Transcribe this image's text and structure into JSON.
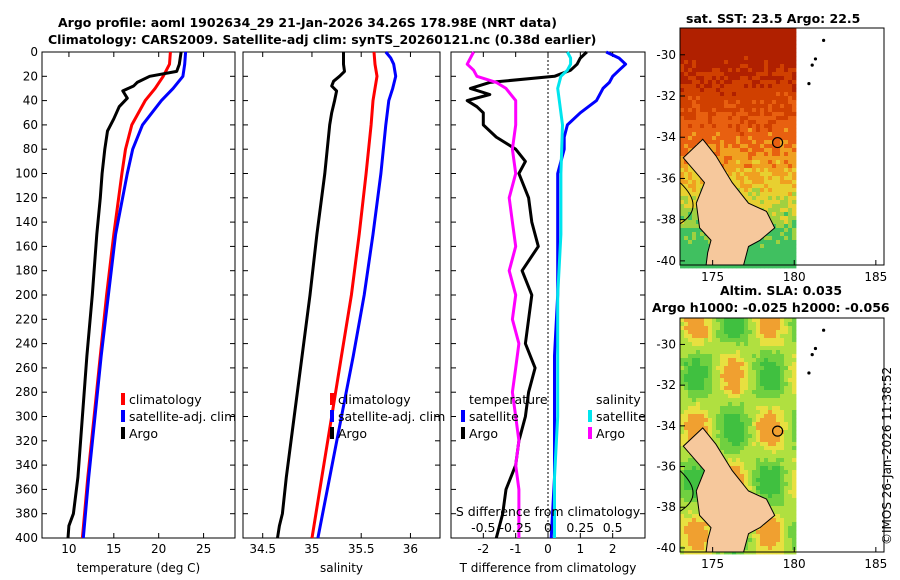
{
  "header": {
    "title_line1": "Argo profile: aoml 1902634_29 21-Jan-2026 34.26S 178.98E (NRT data)",
    "title_line2": "Climatology: CARS2009. Satellite-adj clim: synTS_20260121.nc (0.38d earlier)"
  },
  "map_sst": {
    "title": "sat. SST: 23.5 Argo: 22.5"
  },
  "map_sla": {
    "title_line1": "Altim. SLA: 0.035",
    "title_line2": "Argo h1000: -0.025 h2000: -0.056"
  },
  "watermark": "©IMOS 26-Jan-2026 11:38:52",
  "colors": {
    "climatology": "#ff0000",
    "satellite": "#0000ff",
    "argo": "#000000",
    "sat_diff": "#00e5ee",
    "argo_diff": "#ff00ff"
  },
  "chart_data": [
    {
      "type": "line",
      "name": "temperature",
      "xlabel": "temperature (deg C)",
      "xlim": [
        7,
        28.5
      ],
      "ylim": [
        0,
        400
      ],
      "xticks": [
        "10",
        "15",
        "20",
        "25"
      ],
      "xtick_values": [
        10,
        15,
        20,
        25
      ],
      "yticks": [
        "0",
        "20",
        "40",
        "60",
        "80",
        "100",
        "120",
        "140",
        "160",
        "180",
        "200",
        "220",
        "240",
        "260",
        "280",
        "300",
        "320",
        "340",
        "360",
        "380",
        "400"
      ],
      "ytick_values": [
        0,
        20,
        40,
        60,
        80,
        100,
        120,
        140,
        160,
        180,
        200,
        220,
        240,
        260,
        280,
        300,
        320,
        340,
        360,
        380,
        400
      ],
      "legend": [
        "climatology",
        "satellite-adj. clim",
        "Argo"
      ],
      "series": [
        {
          "name": "climatology",
          "color": "#ff0000",
          "depth": [
            0,
            10,
            20,
            30,
            40,
            60,
            80,
            100,
            150,
            200,
            250,
            300,
            350,
            400
          ],
          "values": [
            21.3,
            21.2,
            20.5,
            19.6,
            18.5,
            17.0,
            16.3,
            15.9,
            15.0,
            14.2,
            13.5,
            12.8,
            12.1,
            11.5
          ]
        },
        {
          "name": "satellite-adj. clim",
          "color": "#0000ff",
          "depth": [
            0,
            10,
            20,
            30,
            40,
            60,
            80,
            100,
            150,
            200,
            250,
            300,
            350,
            400
          ],
          "values": [
            23.0,
            22.9,
            22.7,
            21.6,
            20.3,
            18.2,
            17.1,
            16.5,
            15.2,
            14.4,
            13.6,
            12.9,
            12.2,
            11.6
          ]
        },
        {
          "name": "Argo",
          "color": "#000000",
          "depth": [
            0,
            5,
            10,
            16,
            20,
            25,
            28,
            32,
            38,
            45,
            55,
            65,
            80,
            100,
            120,
            150,
            200,
            250,
            300,
            350,
            380,
            390,
            400
          ],
          "values": [
            22.5,
            22.4,
            22.3,
            22.0,
            19.0,
            17.6,
            17.2,
            16.0,
            16.5,
            15.6,
            15.0,
            14.3,
            14.0,
            13.7,
            13.5,
            13.1,
            12.6,
            12.0,
            11.5,
            11.0,
            10.5,
            10.0,
            9.9
          ]
        }
      ]
    },
    {
      "type": "line",
      "name": "salinity",
      "xlabel": "salinity",
      "xlim": [
        34.3,
        36.3
      ],
      "ylim": [
        0,
        400
      ],
      "xticks": [
        "34.5",
        "35",
        "35.5",
        "36"
      ],
      "xtick_values": [
        34.5,
        35,
        35.5,
        36
      ],
      "legend": [
        "climatology",
        "satellite-adj. clim",
        "Argo"
      ],
      "series": [
        {
          "name": "climatology",
          "color": "#ff0000",
          "depth": [
            0,
            10,
            20,
            30,
            40,
            60,
            100,
            150,
            200,
            250,
            300,
            350,
            400
          ],
          "values": [
            35.63,
            35.64,
            35.66,
            35.64,
            35.62,
            35.6,
            35.55,
            35.48,
            35.4,
            35.3,
            35.2,
            35.1,
            35.0
          ]
        },
        {
          "name": "satellite-adj. clim",
          "color": "#0000ff",
          "depth": [
            0,
            5,
            10,
            20,
            30,
            40,
            60,
            100,
            150,
            200,
            250,
            300,
            350,
            400
          ],
          "values": [
            35.75,
            35.8,
            35.83,
            35.85,
            35.82,
            35.78,
            35.75,
            35.7,
            35.62,
            35.53,
            35.42,
            35.3,
            35.18,
            35.06
          ]
        },
        {
          "name": "Argo",
          "color": "#000000",
          "depth": [
            0,
            10,
            16,
            20,
            24,
            28,
            32,
            40,
            50,
            60,
            100,
            150,
            200,
            250,
            300,
            350,
            380,
            390,
            400
          ],
          "values": [
            35.32,
            35.32,
            35.33,
            35.28,
            35.22,
            35.2,
            35.25,
            35.23,
            35.2,
            35.18,
            35.13,
            35.05,
            34.98,
            34.9,
            34.82,
            34.74,
            34.7,
            34.67,
            34.65
          ]
        }
      ]
    },
    {
      "type": "line",
      "name": "difference",
      "xlabel": "T difference from climatology",
      "top_label": "S difference from climatology",
      "xlim": [
        -3,
        3
      ],
      "ylim": [
        0,
        400
      ],
      "xticks": [
        "-2",
        "-1",
        "0",
        "1",
        "2"
      ],
      "xtick_values": [
        -2,
        -1,
        0,
        1,
        2
      ],
      "top_ticks": [
        "-0.5",
        "-0.25",
        "0",
        "0.25",
        "0.5"
      ],
      "top_tick_values": [
        -2,
        -1,
        0,
        1,
        2
      ],
      "legend_t": [
        "temperature",
        "satellite",
        "Argo"
      ],
      "legend_s": [
        "salinity",
        "satellite",
        "Argo"
      ],
      "series": [
        {
          "name": "T satellite",
          "color": "#0000ff",
          "depth": [
            0,
            5,
            10,
            15,
            20,
            25,
            30,
            40,
            50,
            60,
            70,
            80,
            100,
            150,
            200,
            250,
            300,
            350,
            400
          ],
          "values": [
            1.8,
            2.2,
            2.4,
            2.2,
            2.0,
            1.9,
            1.7,
            1.5,
            1.0,
            0.6,
            0.5,
            0.5,
            0.3,
            0.3,
            0.3,
            0.2,
            0.2,
            0.2,
            0.1
          ]
        },
        {
          "name": "T Argo",
          "color": "#000000",
          "depth": [
            0,
            5,
            10,
            15,
            20,
            25,
            30,
            35,
            40,
            45,
            50,
            60,
            70,
            80,
            90,
            100,
            120,
            140,
            160,
            180,
            200,
            220,
            240,
            260,
            280,
            300,
            320,
            340,
            360,
            380,
            400
          ],
          "values": [
            1.2,
            1.0,
            0.9,
            0.7,
            0.2,
            -1.8,
            -2.4,
            -1.8,
            -2.5,
            -2.2,
            -2.0,
            -2.0,
            -1.6,
            -1.0,
            -0.7,
            -0.9,
            -0.6,
            -0.5,
            -0.3,
            -0.8,
            -0.5,
            -0.6,
            -0.7,
            -0.4,
            -0.6,
            -0.7,
            -0.9,
            -1.0,
            -1.3,
            -1.4,
            -1.6
          ]
        },
        {
          "name": "S satellite",
          "color": "#00e5ee",
          "depth": [
            0,
            5,
            10,
            15,
            20,
            30,
            40,
            60,
            100,
            150,
            200,
            250,
            300,
            350,
            400
          ],
          "values": [
            0.6,
            0.7,
            0.7,
            0.6,
            0.4,
            0.3,
            0.35,
            0.45,
            0.4,
            0.4,
            0.3,
            0.3,
            0.3,
            0.2,
            0.2
          ]
        },
        {
          "name": "S Argo",
          "color": "#ff00ff",
          "depth": [
            0,
            5,
            10,
            15,
            20,
            25,
            30,
            40,
            60,
            80,
            100,
            120,
            140,
            160,
            180,
            200,
            220,
            240,
            260,
            280,
            300,
            320,
            340,
            360,
            380,
            400
          ],
          "values": [
            -2.3,
            -2.4,
            -2.5,
            -2.3,
            -2.2,
            -1.6,
            -1.3,
            -1.0,
            -1.0,
            -1.1,
            -1.0,
            -1.2,
            -1.1,
            -1.0,
            -1.2,
            -1.0,
            -1.1,
            -0.9,
            -1.0,
            -1.1,
            -1.0,
            -0.9,
            -1.0,
            -0.9,
            -0.9,
            -0.9
          ]
        }
      ]
    },
    {
      "type": "heatmap",
      "name": "sst_map",
      "xlim": [
        173,
        185.5
      ],
      "ylim": [
        -40.2,
        -28.7
      ],
      "xticks": [
        "175",
        "180",
        "185"
      ],
      "xtick_values": [
        175,
        180,
        185
      ],
      "yticks": [
        "-30",
        "-32",
        "-34",
        "-36",
        "-38",
        "-40"
      ],
      "ytick_values": [
        -30,
        -32,
        -34,
        -36,
        -38,
        -40
      ],
      "argo_position": [
        178.98,
        -34.26
      ]
    },
    {
      "type": "heatmap",
      "name": "sla_map",
      "xlim": [
        173,
        185.5
      ],
      "ylim": [
        -40.2,
        -28.7
      ],
      "xticks": [
        "175",
        "180",
        "185"
      ],
      "xtick_values": [
        175,
        180,
        185
      ],
      "yticks": [
        "-30",
        "-32",
        "-34",
        "-36",
        "-38",
        "-40"
      ],
      "ytick_values": [
        -30,
        -32,
        -34,
        -36,
        -38,
        -40
      ],
      "argo_position": [
        178.98,
        -34.26
      ]
    }
  ]
}
